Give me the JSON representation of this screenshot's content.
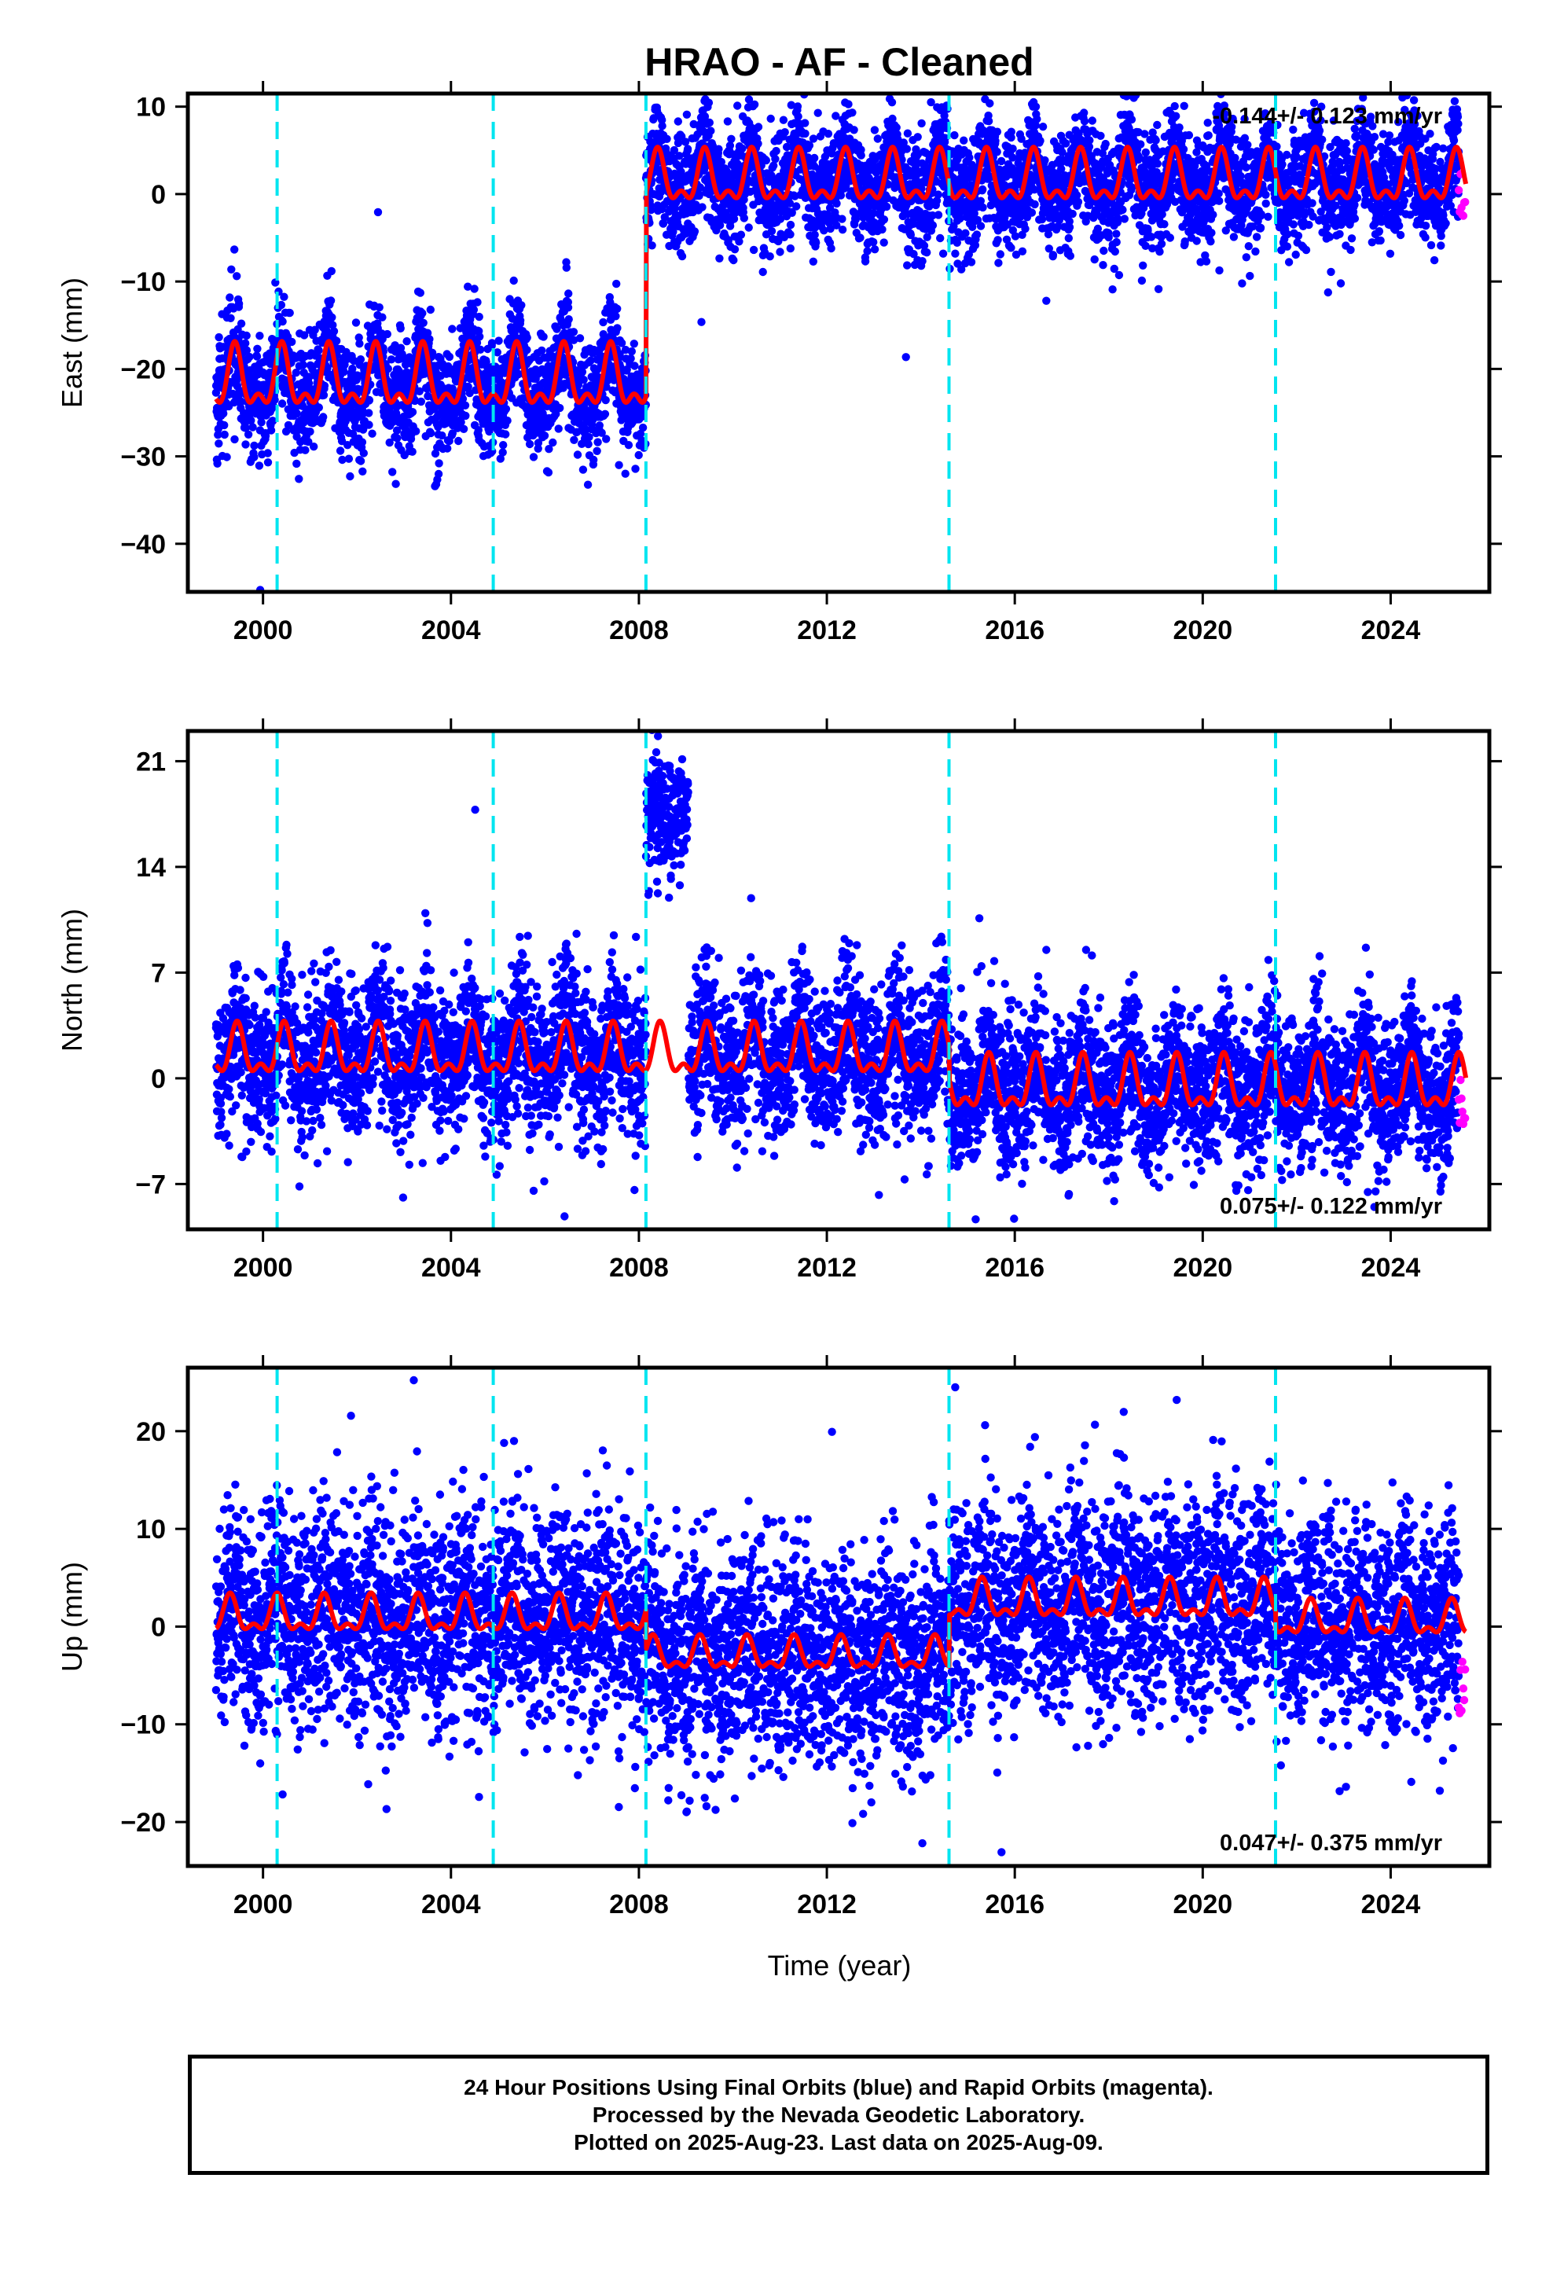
{
  "title": "HRAO  - AF - Cleaned",
  "xlabel": "Time (year)",
  "footer": {
    "line1": "24 Hour Positions Using Final Orbits (blue) and Rapid Orbits (magenta).",
    "line2": "Processed by the Nevada Geodetic Laboratory.",
    "line3": "Plotted on 2025-Aug-23. Last data on 2025-Aug-09."
  },
  "colors": {
    "final_orbits": "#0000ff",
    "rapid_orbits": "#ff00ff",
    "model": "#ff0000",
    "breaks": "#00e5f0",
    "frame": "#000000"
  },
  "chart_data": [
    {
      "type": "scatter",
      "panel": "east",
      "ylabel": "East (mm)",
      "rate_text": "-0.144+/- 0.123 mm/yr",
      "rate_position": "top-right",
      "xlim": [
        1998.4,
        2026.1
      ],
      "ylim": [
        -45.5,
        11.5
      ],
      "xticks": [
        2000,
        2004,
        2008,
        2012,
        2016,
        2020,
        2024
      ],
      "yticks": [
        10,
        0,
        -10,
        -20,
        -30,
        -40
      ],
      "ytick_labels": [
        "10",
        "0",
        "−10",
        "−20",
        "−30",
        "−40"
      ],
      "breaks": [
        2000.3,
        2004.9,
        2008.15,
        2014.6,
        2021.55
      ],
      "data_range": [
        1999.0,
        2025.6
      ],
      "rapid_range": [
        2025.45,
        2025.6
      ],
      "model_segments": [
        {
          "start": 1999.0,
          "end": 2008.15,
          "offset": -21.5,
          "amplitude": 3.6,
          "peak_phase": 0.4,
          "trend": 0.0
        },
        {
          "start": 2008.15,
          "end": 2025.6,
          "offset": 1.5,
          "amplitude": 3.0,
          "peak_phase": 0.4,
          "trend": 0.0
        }
      ],
      "scatter_spread": 3.2,
      "series": [
        {
          "name": "Final Orbits (blue)",
          "color": "#0000ff"
        },
        {
          "name": "Rapid Orbits (magenta)",
          "color": "#ff00ff"
        }
      ]
    },
    {
      "type": "scatter",
      "panel": "north",
      "ylabel": "North (mm)",
      "rate_text": "0.075+/- 0.122 mm/yr",
      "rate_position": "bottom-right",
      "xlim": [
        1998.4,
        2026.1
      ],
      "ylim": [
        -10,
        23
      ],
      "xticks": [
        2000,
        2004,
        2008,
        2012,
        2016,
        2020,
        2024
      ],
      "yticks": [
        21,
        14,
        7,
        0,
        -7
      ],
      "ytick_labels": [
        "21",
        "14",
        "7",
        "0",
        "−7"
      ],
      "breaks": [
        2000.3,
        2004.9,
        2008.15,
        2014.6,
        2021.55
      ],
      "data_range": [
        1999.0,
        2025.6
      ],
      "rapid_range": [
        2025.45,
        2025.6
      ],
      "anomaly": {
        "start": 2008.15,
        "end": 2009.05,
        "center": 17.5,
        "spread": 2.0
      },
      "model_segments": [
        {
          "start": 1999.0,
          "end": 2014.6,
          "offset": 1.6,
          "amplitude": 1.7,
          "peak_phase": 0.45,
          "trend": 0.0
        },
        {
          "start": 2014.6,
          "end": 2025.6,
          "offset": -0.6,
          "amplitude": 1.8,
          "peak_phase": 0.45,
          "trend": 0.0
        }
      ],
      "scatter_spread": 2.5,
      "series": [
        {
          "name": "Final Orbits (blue)",
          "color": "#0000ff"
        },
        {
          "name": "Rapid Orbits (magenta)",
          "color": "#ff00ff"
        }
      ]
    },
    {
      "type": "scatter",
      "panel": "up",
      "ylabel": "Up (mm)",
      "rate_text": "0.047+/- 0.375 mm/yr",
      "rate_position": "bottom-right",
      "xlim": [
        1998.4,
        2026.1
      ],
      "ylim": [
        -24.5,
        26.5
      ],
      "xticks": [
        2000,
        2004,
        2008,
        2012,
        2016,
        2020,
        2024
      ],
      "yticks": [
        20,
        10,
        0,
        -10,
        -20
      ],
      "ytick_labels": [
        "20",
        "10",
        "0",
        "−10",
        "−20"
      ],
      "breaks": [
        2000.3,
        2004.9,
        2008.15,
        2014.6,
        2021.55
      ],
      "data_range": [
        1999.0,
        2025.6
      ],
      "rapid_range": [
        2025.45,
        2025.6
      ],
      "model_segments": [
        {
          "start": 1999.0,
          "end": 2008.15,
          "offset": 1.0,
          "amplitude": 1.9,
          "peak_phase": 0.3,
          "trend": 0.0
        },
        {
          "start": 2008.15,
          "end": 2014.6,
          "offset": -3.0,
          "amplitude": 1.7,
          "peak_phase": 0.3,
          "trend": 0.0
        },
        {
          "start": 2014.6,
          "end": 2021.55,
          "offset": 2.5,
          "amplitude": 2.0,
          "peak_phase": 0.3,
          "trend": 0.0
        },
        {
          "start": 2021.55,
          "end": 2025.6,
          "offset": 0.6,
          "amplitude": 1.8,
          "peak_phase": 0.3,
          "trend": 0.0
        }
      ],
      "scatter_spread": 5.5,
      "series": [
        {
          "name": "Final Orbits (blue)",
          "color": "#0000ff"
        },
        {
          "name": "Rapid Orbits (magenta)",
          "color": "#ff00ff"
        }
      ]
    }
  ]
}
